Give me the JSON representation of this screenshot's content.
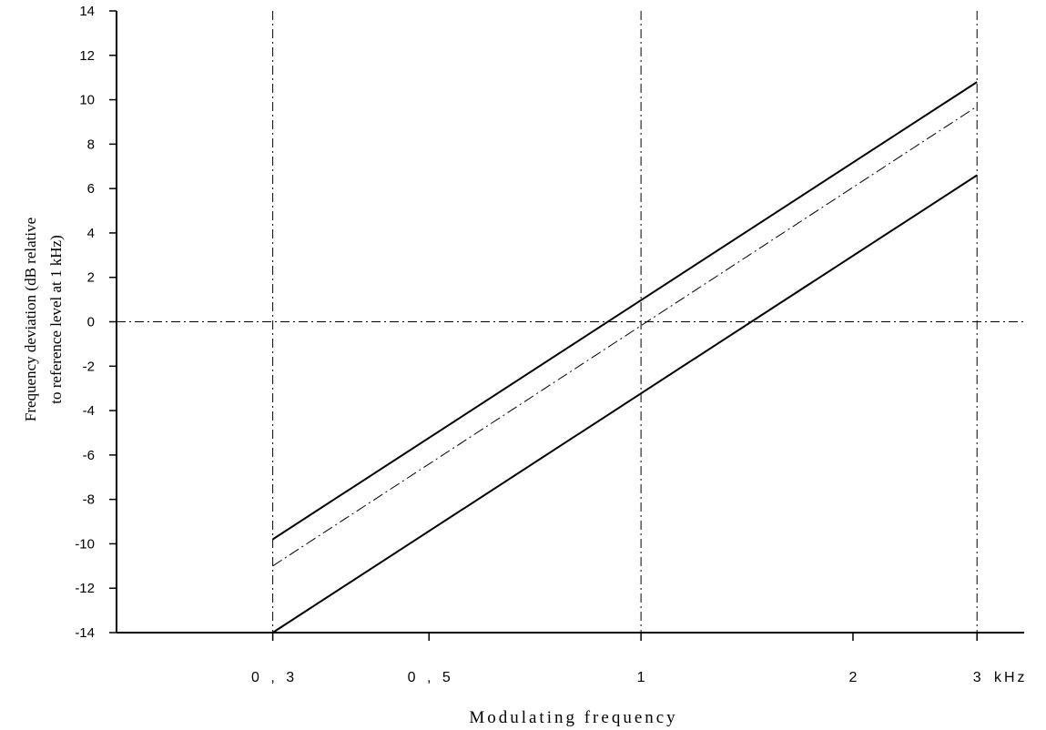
{
  "chart_data": {
    "type": "line",
    "xscale": "log",
    "xlim": [
      0.18,
      3.5
    ],
    "ylim": [
      -14,
      14
    ],
    "yticks": [
      14,
      12,
      10,
      8,
      6,
      4,
      2,
      0,
      -2,
      -4,
      -6,
      -8,
      -10,
      -12,
      -14
    ],
    "xticks": [
      {
        "value": 0.3,
        "label": "0 , 3"
      },
      {
        "value": 0.5,
        "label": "0 , 5"
      },
      {
        "value": 1,
        "label": "1"
      },
      {
        "value": 2,
        "label": "2"
      },
      {
        "value": 3,
        "label": "3"
      }
    ],
    "x_unit": "kHz",
    "xlabel": "Modulating frequency",
    "ylabel": [
      "Frequency deviation (dB relative",
      "to reference level at 1 kHz)"
    ],
    "reference_lines": {
      "vertical": [
        0.3,
        1,
        3
      ],
      "horizontal": [
        0
      ]
    },
    "series": [
      {
        "style": "solid",
        "x": [
          0.3,
          3
        ],
        "y": [
          -9.8,
          10.8
        ]
      },
      {
        "style": "dash-dot",
        "x": [
          0.3,
          3
        ],
        "y": [
          -11,
          9.7
        ]
      },
      {
        "style": "solid",
        "x": [
          0.3,
          3
        ],
        "y": [
          -14,
          6.6
        ]
      }
    ]
  }
}
